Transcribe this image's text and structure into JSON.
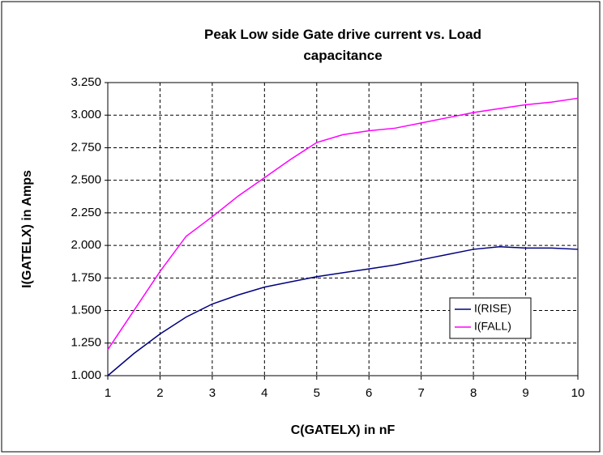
{
  "chart_data": {
    "type": "line",
    "title": "Peak Low side Gate drive current vs. Load capacitance",
    "xlabel": "C(GATELX) in nF",
    "ylabel": "I(GATELX) in Amps",
    "x": [
      1,
      1.5,
      2,
      2.5,
      3,
      3.5,
      4,
      4.5,
      5,
      5.5,
      6,
      6.5,
      7,
      7.5,
      8,
      8.5,
      9,
      9.5,
      10
    ],
    "series": [
      {
        "name": "I(RISE)",
        "color": "#000080",
        "values": [
          1.0,
          1.17,
          1.32,
          1.45,
          1.55,
          1.62,
          1.68,
          1.72,
          1.76,
          1.79,
          1.82,
          1.85,
          1.89,
          1.93,
          1.97,
          1.99,
          1.98,
          1.98,
          1.97
        ]
      },
      {
        "name": "I(FALL)",
        "color": "#ff00ff",
        "values": [
          1.2,
          1.5,
          1.8,
          2.07,
          2.22,
          2.38,
          2.52,
          2.66,
          2.79,
          2.85,
          2.88,
          2.9,
          2.94,
          2.98,
          3.02,
          3.05,
          3.08,
          3.1,
          3.13
        ]
      }
    ],
    "xlim": [
      1,
      10
    ],
    "xticks": [
      1,
      2,
      3,
      4,
      5,
      6,
      7,
      8,
      9,
      10
    ],
    "ylim": [
      1,
      3.25
    ],
    "yticks": [
      {
        "value": 1,
        "label": "1.000"
      },
      {
        "value": 1.25,
        "label": "1.250"
      },
      {
        "value": 1.5,
        "label": "1.500"
      },
      {
        "value": 1.75,
        "label": "1.750"
      },
      {
        "value": 2,
        "label": "2.000"
      },
      {
        "value": 2.25,
        "label": "2.250"
      },
      {
        "value": 2.5,
        "label": "2.500"
      },
      {
        "value": 2.75,
        "label": "2.750"
      },
      {
        "value": 3,
        "label": "3.000"
      },
      {
        "value": 3.25,
        "label": "3.250"
      }
    ],
    "grid": true
  }
}
